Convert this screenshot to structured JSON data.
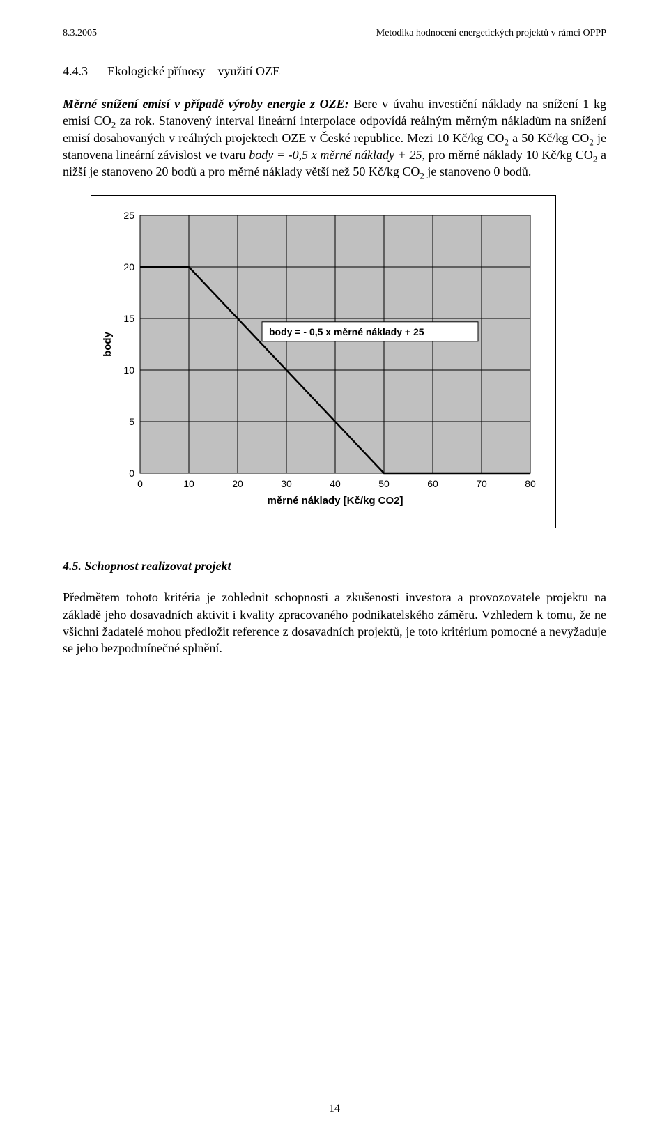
{
  "header": {
    "left": "8.3.2005",
    "right": "Metodika hodnocení energetických projektů v rámci OPPP"
  },
  "section": {
    "num": "4.4.3",
    "title": "Ekologické přínosy – využití OZE"
  },
  "para1": {
    "lead_bolditalic": "Měrné snížení emisí v případě výroby energie z OZE:",
    "rest_before_co2_1": " Bere v úvahu investiční náklady na snížení 1 kg emisí CO",
    "sub1": "2",
    "rest_after_co2_1": " za rok. Stanovený interval lineární interpolace odpovídá reálným měrným nákladům na snížení emisí dosahovaných v reálných projektech OZE v České republice. Mezi 10 Kč/kg CO",
    "sub2": "2",
    "rest_2": " a 50 Kč/kg CO",
    "sub3": "2",
    "rest_3_before_italic": " je stanovena lineární závislost ve tvaru ",
    "italic": "body = -0,5 x měrné náklady + 25",
    "rest_3_after_italic": ", pro měrné náklady 10 Kč/kg CO",
    "sub4": "2",
    "rest_4": " a nižší je stanoveno 20  bodů a pro měrné náklady větší než 50 Kč/kg CO",
    "sub5": "2",
    "rest_5": " je stanoveno 0  bodů."
  },
  "chart": {
    "type": "line",
    "plot_bg": "#c0c0c0",
    "outer_bg": "#ffffff",
    "grid_color": "#000000",
    "line_color": "#000000",
    "line_width": 2.5,
    "xlim": [
      0,
      80
    ],
    "ylim": [
      0,
      25
    ],
    "xticks": [
      0,
      10,
      20,
      30,
      40,
      50,
      60,
      70,
      80
    ],
    "yticks": [
      0,
      5,
      10,
      15,
      20,
      25
    ],
    "series": [
      {
        "x": 0,
        "y": 20
      },
      {
        "x": 10,
        "y": 20
      },
      {
        "x": 50,
        "y": 0
      },
      {
        "x": 80,
        "y": 0
      }
    ],
    "ylabel": "body",
    "xlabel": "měrné náklady [Kč/kg CO2]",
    "label_fontsize": 15,
    "tick_fontsize": 14,
    "legend_text": "body = - 0,5 x měrné náklady + 25",
    "legend_bg": "#ffffff",
    "legend_border": "#000000"
  },
  "subsection": {
    "num": "4.5.",
    "title": "Schopnost realizovat projekt"
  },
  "para2": "Předmětem tohoto kritéria je zohlednit schopnosti a zkušenosti investora a provozovatele projektu na základě jeho dosavadních aktivit i kvality zpracovaného podnikatelského záměru. Vzhledem k tomu, že ne všichni žadatelé mohou předložit reference z dosavadních projektů, je toto kritérium pomocné a nevyžaduje se jeho bezpodmínečné splnění.",
  "pagenum": "14"
}
